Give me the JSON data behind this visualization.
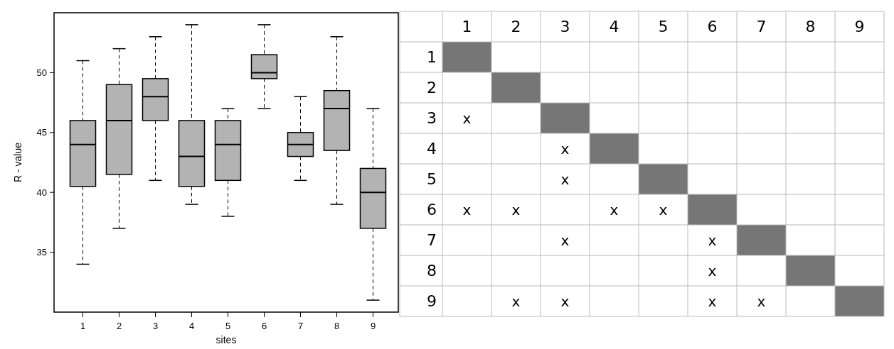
{
  "chart_data": [
    {
      "type": "box",
      "xlabel": "sites",
      "ylabel": "R - value",
      "categories": [
        "1",
        "2",
        "3",
        "4",
        "5",
        "6",
        "7",
        "8",
        "9"
      ],
      "ylim": [
        30,
        55
      ],
      "yticks": [
        35,
        40,
        45,
        50
      ],
      "grid": false,
      "series": [
        {
          "color": "#b3b3b3",
          "boxes": [
            {
              "low": 34,
              "q1": 40.5,
              "median": 44,
              "q3": 46,
              "high": 51
            },
            {
              "low": 37,
              "q1": 41.5,
              "median": 46,
              "q3": 49,
              "high": 52
            },
            {
              "low": 41,
              "q1": 46,
              "median": 48,
              "q3": 49.5,
              "high": 53
            },
            {
              "low": 39,
              "q1": 40.5,
              "median": 43,
              "q3": 46,
              "high": 54
            },
            {
              "low": 38,
              "q1": 41,
              "median": 44,
              "q3": 46,
              "high": 47
            },
            {
              "low": 47,
              "q1": 49.5,
              "median": 50,
              "q3": 51.5,
              "high": 54
            },
            {
              "low": 41,
              "q1": 43,
              "median": 44,
              "q3": 45,
              "high": 48
            },
            {
              "low": 39,
              "q1": 43.5,
              "median": 47,
              "q3": 48.5,
              "high": 53
            },
            {
              "low": 31,
              "q1": 37,
              "median": 40,
              "q3": 42,
              "high": 47
            }
          ]
        }
      ]
    },
    {
      "type": "heatmap",
      "categories": [
        "1",
        "2",
        "3",
        "4",
        "5",
        "6",
        "7",
        "8",
        "9"
      ],
      "y_categories": [
        "1",
        "2",
        "3",
        "4",
        "5",
        "6",
        "7",
        "8",
        "9"
      ],
      "cells": [
        [
          null,
          null,
          null,
          null,
          null,
          null,
          null,
          null,
          null
        ],
        [
          null,
          null,
          null,
          null,
          null,
          null,
          null,
          null,
          null
        ],
        [
          null,
          null,
          null,
          null,
          null,
          null,
          null,
          null,
          null
        ],
        [
          null,
          null,
          null,
          null,
          null,
          null,
          null,
          null,
          null
        ],
        [
          null,
          null,
          null,
          null,
          null,
          null,
          null,
          null,
          null
        ],
        [
          null,
          null,
          null,
          null,
          null,
          null,
          null,
          null,
          null
        ],
        [
          null,
          null,
          null,
          null,
          null,
          null,
          null,
          null,
          null
        ],
        [
          null,
          null,
          null,
          null,
          null,
          null,
          null,
          null,
          null
        ],
        [
          null,
          null,
          null,
          null,
          null,
          null,
          null,
          null,
          null
        ]
      ],
      "cell_labels": [
        [
          null,
          null,
          null,
          null,
          null,
          null,
          null,
          null,
          null
        ],
        [
          null,
          null,
          null,
          null,
          null,
          null,
          null,
          null,
          null
        ],
        [
          "x",
          null,
          null,
          null,
          null,
          null,
          null,
          null,
          null
        ],
        [
          null,
          null,
          "x",
          null,
          null,
          null,
          null,
          null,
          null
        ],
        [
          null,
          null,
          "x",
          null,
          null,
          null,
          null,
          null,
          null
        ],
        [
          "x",
          "x",
          null,
          "x",
          "x",
          null,
          null,
          null,
          null
        ],
        [
          null,
          null,
          "x",
          null,
          null,
          "x",
          null,
          null,
          null
        ],
        [
          null,
          null,
          null,
          null,
          null,
          "x",
          null,
          null,
          null
        ],
        [
          null,
          "x",
          "x",
          null,
          null,
          "x",
          "x",
          null,
          null
        ]
      ]
    }
  ]
}
